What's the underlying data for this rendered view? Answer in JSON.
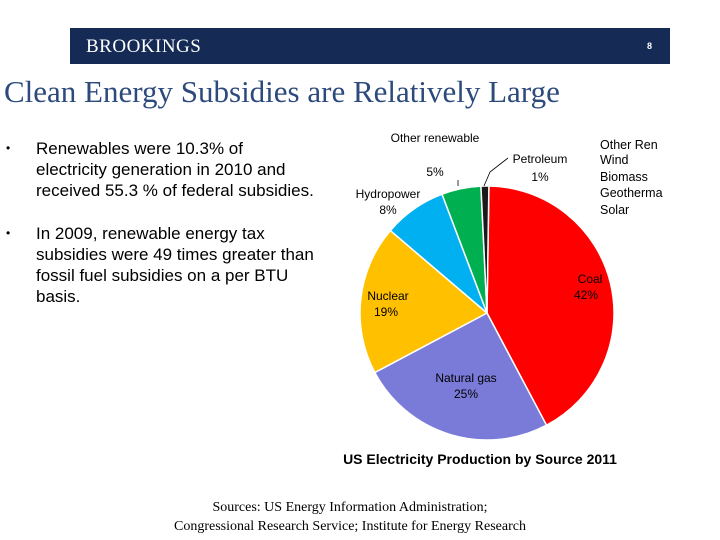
{
  "header": {
    "brand": "BROOKINGS",
    "page_number": "8"
  },
  "title": "Clean Energy Subsidies are Relatively Large",
  "bullets": [
    "Renewables were 10.3% of electricity generation in 2010 and received 55.3 % of federal subsidies.",
    "In 2009, renewable energy tax subsidies were 49 times greater than fossil fuel subsidies on a per BTU basis."
  ],
  "bullet_symbol": "•",
  "chart_data": {
    "type": "pie",
    "title": "US Electricity Production by Source 2011",
    "slices": [
      {
        "label": "Coal",
        "value": 42,
        "value_label": "42%",
        "color": "#ff0000"
      },
      {
        "label": "Natural gas",
        "value": 25,
        "value_label": "25%",
        "color": "#7a7ad8"
      },
      {
        "label": "Nuclear",
        "value": 19,
        "value_label": "19%",
        "color": "#ffc000"
      },
      {
        "label": "Hydropower",
        "value": 8,
        "value_label": "8%",
        "color": "#00b0f0"
      },
      {
        "label": "Other renewable",
        "value": 5,
        "value_label": "5%",
        "color": "#00b050"
      },
      {
        "label": "Petroleum",
        "value": 1,
        "value_label": "1%",
        "color": "#1a1a1a"
      }
    ],
    "other_renewable_breakdown": [
      "Other Ren",
      "Wind",
      "Biomass",
      "Geotherma",
      "Solar"
    ]
  },
  "sources": {
    "line1": "Sources:  US Energy Information Administration;",
    "line2": "Congressional Research Service; Institute for Energy Research"
  }
}
